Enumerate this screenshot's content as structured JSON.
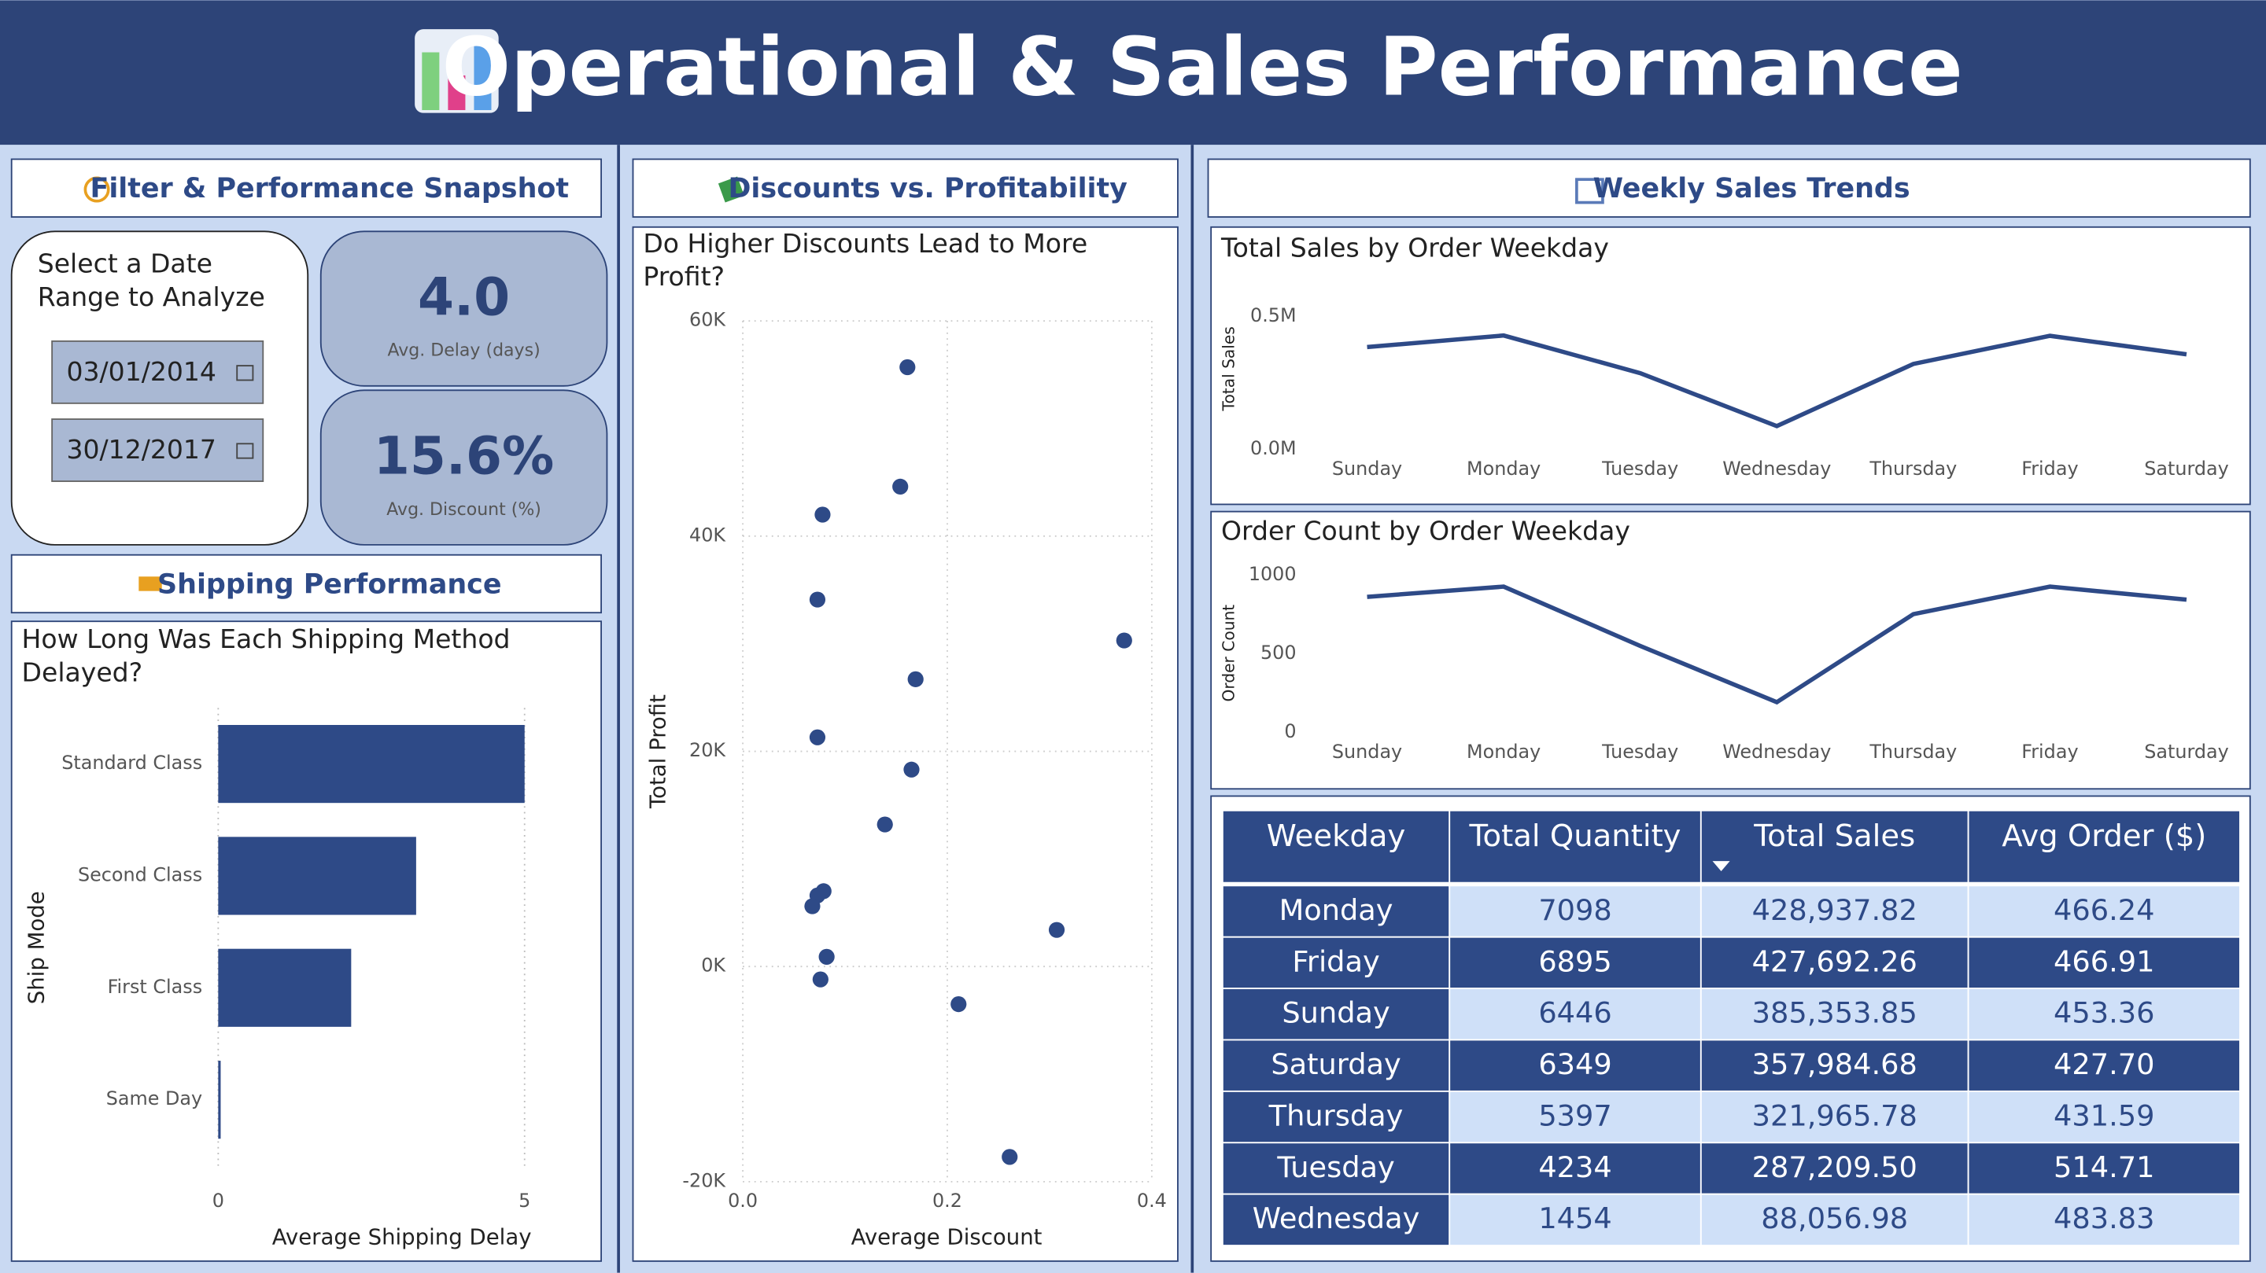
{
  "header": {
    "title": "Operational & Sales Performance"
  },
  "panels": {
    "filter": "Filter & Performance Snapshot",
    "shipping": "Shipping Performance",
    "discounts": "Discounts vs. Profitability",
    "weekly": "Weekly Sales Trends"
  },
  "slicer": {
    "title": "Select a Date Range to Analyze",
    "start": "03/01/2014",
    "end": "30/12/2017"
  },
  "kpis": [
    {
      "value": "4.0",
      "label": "Avg. Delay (days)"
    },
    {
      "value": "15.6%",
      "label": "Avg. Discount (%)"
    }
  ],
  "chart_data": [
    {
      "type": "bar",
      "title": "How Long Was Each Shipping Method Delayed?",
      "x_label": "Average Shipping Delay",
      "y_label": "Ship Mode",
      "categories": [
        "Standard Class",
        "Second Class",
        "First Class",
        "Same Day"
      ],
      "values": [
        5.0,
        3.23,
        2.17,
        0.04
      ],
      "color": "#2e4a87",
      "xlim": [
        0,
        5
      ],
      "xticks": [
        0,
        5
      ],
      "grid": true
    },
    {
      "type": "scatter",
      "title": "Do Higher Discounts Lead to More Profit?",
      "x_label": "Average Discount",
      "y_label": "Total Profit",
      "x": [
        0.161,
        0.154,
        0.078,
        0.073,
        0.373,
        0.169,
        0.073,
        0.165,
        0.139,
        0.079,
        0.073,
        0.068,
        0.307,
        0.082,
        0.076,
        0.211,
        0.261
      ],
      "values": [
        55700,
        44600,
        42000,
        34100,
        30300,
        26700,
        21300,
        18300,
        13200,
        7000,
        6600,
        5600,
        3400,
        900,
        -1200,
        -3500,
        -17700
      ],
      "color": "#2e4a87",
      "xlim": [
        0,
        0.4
      ],
      "xticks": [
        {
          "value": 0,
          "label": "0.0"
        },
        0.2,
        0.4
      ],
      "ylim": [
        -20000,
        60000
      ],
      "yticks": [
        {
          "value": -20000,
          "label": "-20K"
        },
        {
          "value": 0,
          "label": "0K"
        },
        {
          "value": 20000,
          "label": "20K"
        },
        {
          "value": 40000,
          "label": "40K"
        },
        {
          "value": 60000,
          "label": "60K"
        }
      ],
      "grid": true
    },
    {
      "type": "line",
      "title": "Total Sales by Order Weekday",
      "y_label": "Total Sales",
      "categories": [
        "Sunday",
        "Monday",
        "Tuesday",
        "Wednesday",
        "Thursday",
        "Friday",
        "Saturday"
      ],
      "values": [
        385353.85,
        428937.82,
        287209.5,
        88056.98,
        321965.78,
        427692.26,
        357984.68
      ],
      "color": "#2e4a87",
      "ylim": [
        0,
        500000
      ],
      "yticks": [
        {
          "value": 0,
          "label": "0.0M"
        },
        {
          "value": 500000,
          "label": "0.5M"
        }
      ]
    },
    {
      "type": "line",
      "title": "Order Count by Order Weekday",
      "y_label": "Order Count",
      "categories": [
        "Sunday",
        "Monday",
        "Tuesday",
        "Wednesday",
        "Thursday",
        "Friday",
        "Saturday"
      ],
      "values": [
        862,
        927,
        550,
        193,
        752,
        927,
        844
      ],
      "color": "#2e4a87",
      "ylim": [
        0,
        1000
      ],
      "yticks": [
        0,
        500,
        1000
      ]
    }
  ],
  "table": {
    "headers": [
      "Weekday",
      "Total Quantity",
      "Total Sales",
      "Avg Order ($)"
    ],
    "sort_column": 2,
    "rows": [
      [
        "Monday",
        "7098",
        "428,937.82",
        "466.24"
      ],
      [
        "Friday",
        "6895",
        "427,692.26",
        "466.91"
      ],
      [
        "Sunday",
        "6446",
        "385,353.85",
        "453.36"
      ],
      [
        "Saturday",
        "6349",
        "357,984.68",
        "427.70"
      ],
      [
        "Thursday",
        "5397",
        "321,965.78",
        "431.59"
      ],
      [
        "Tuesday",
        "4234",
        "287,209.50",
        "514.71"
      ],
      [
        "Wednesday",
        "1454",
        "88,056.98",
        "483.83"
      ]
    ]
  }
}
